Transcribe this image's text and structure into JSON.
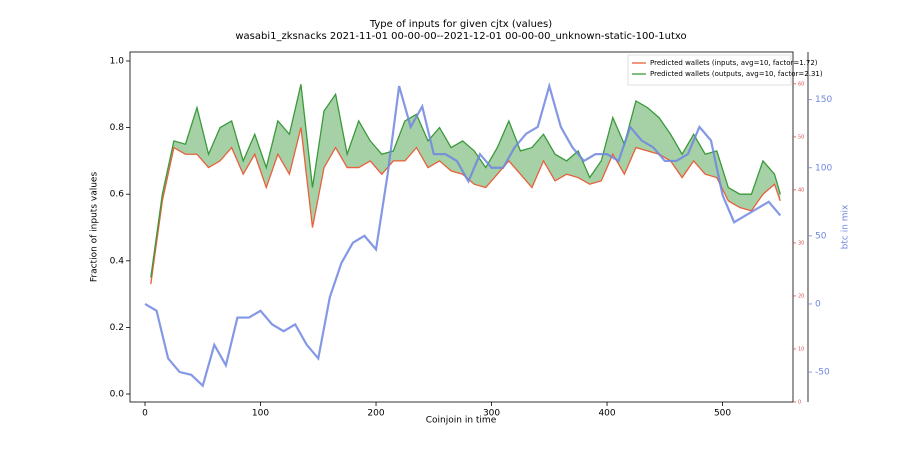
{
  "chart_data": {
    "type": "line",
    "title": "Type of inputs for given cjtx (values)",
    "subtitle": "wasabi1_zksnacks 2021-11-01 00-00-00--2021-12-01 00-00-00_unknown-static-100-1utxo",
    "xlabel": "Coinjoin in time",
    "ylabel": "Fraction of inputs values",
    "y2label": "btc in mix",
    "xlim": [
      -13,
      561
    ],
    "xticks": [
      0,
      100,
      200,
      300,
      400,
      500
    ],
    "ylim": [
      -0.024,
      1.027
    ],
    "yticks": [
      {
        "value": 0,
        "label": "0.0"
      },
      {
        "value": 0.2,
        "label": "0.2"
      },
      {
        "value": 0.4,
        "label": "0.4"
      },
      {
        "value": 0.6,
        "label": "0.6"
      },
      {
        "value": 0.8,
        "label": "0.8"
      },
      {
        "value": 1,
        "label": "1.0"
      }
    ],
    "y3lim": [
      0,
      66
    ],
    "y3ticks": [
      0,
      10,
      20,
      30,
      40,
      50,
      60
    ],
    "y2lim": [
      -72,
      185
    ],
    "y2ticks": [
      -50,
      0,
      50,
      100,
      150
    ],
    "legend": "upper right",
    "fill_between": true,
    "x": [
      5,
      15,
      25,
      35,
      45,
      55,
      65,
      75,
      85,
      95,
      105,
      115,
      125,
      135,
      145,
      155,
      165,
      175,
      185,
      195,
      205,
      215,
      225,
      235,
      245,
      255,
      265,
      275,
      285,
      295,
      305,
      315,
      325,
      335,
      345,
      355,
      365,
      375,
      385,
      395,
      405,
      415,
      425,
      435,
      445,
      455,
      465,
      475,
      485,
      495,
      505,
      515,
      525,
      535,
      545,
      550
    ],
    "series": [
      {
        "name": "Predicted wallets (inputs, avg=10, factor=1.72)",
        "color": "#e8603c",
        "values": [
          0.33,
          0.58,
          0.74,
          0.72,
          0.72,
          0.68,
          0.7,
          0.74,
          0.66,
          0.72,
          0.62,
          0.72,
          0.66,
          0.8,
          0.5,
          0.68,
          0.74,
          0.68,
          0.68,
          0.7,
          0.66,
          0.7,
          0.7,
          0.74,
          0.68,
          0.7,
          0.67,
          0.66,
          0.63,
          0.62,
          0.66,
          0.7,
          0.66,
          0.62,
          0.7,
          0.64,
          0.66,
          0.65,
          0.63,
          0.64,
          0.72,
          0.66,
          0.74,
          0.73,
          0.72,
          0.7,
          0.65,
          0.7,
          0.66,
          0.65,
          0.58,
          0.56,
          0.55,
          0.6,
          0.63,
          0.58
        ]
      },
      {
        "name": "Predicted wallets (outputs, avg=10, factor=2.31)",
        "color": "#3a9a3a",
        "values": [
          0.35,
          0.6,
          0.76,
          0.75,
          0.86,
          0.72,
          0.8,
          0.82,
          0.7,
          0.78,
          0.68,
          0.82,
          0.78,
          0.93,
          0.62,
          0.85,
          0.9,
          0.72,
          0.82,
          0.76,
          0.72,
          0.73,
          0.82,
          0.84,
          0.76,
          0.8,
          0.74,
          0.76,
          0.73,
          0.68,
          0.74,
          0.82,
          0.73,
          0.74,
          0.78,
          0.72,
          0.7,
          0.73,
          0.65,
          0.7,
          0.83,
          0.75,
          0.88,
          0.86,
          0.83,
          0.78,
          0.72,
          0.78,
          0.72,
          0.73,
          0.62,
          0.6,
          0.6,
          0.7,
          0.66,
          0.6
        ]
      },
      {
        "color": "#6f86e0",
        "axis": "y2",
        "x": [
          0,
          10,
          20,
          30,
          40,
          50,
          60,
          70,
          80,
          90,
          100,
          110,
          120,
          130,
          140,
          150,
          160,
          170,
          180,
          190,
          200,
          210,
          220,
          230,
          240,
          250,
          260,
          270,
          280,
          290,
          300,
          310,
          320,
          330,
          340,
          350,
          360,
          370,
          380,
          390,
          400,
          410,
          420,
          430,
          440,
          450,
          460,
          470,
          480,
          490,
          500,
          510,
          520,
          530,
          540,
          550
        ],
        "values": [
          0,
          -5,
          -40,
          -50,
          -52,
          -60,
          -30,
          -45,
          -10,
          -10,
          -5,
          -15,
          -20,
          -15,
          -30,
          -40,
          5,
          30,
          45,
          50,
          40,
          95,
          160,
          130,
          145,
          110,
          110,
          105,
          90,
          110,
          100,
          100,
          115,
          125,
          130,
          160,
          130,
          115,
          105,
          110,
          110,
          105,
          130,
          120,
          115,
          105,
          105,
          110,
          130,
          120,
          80,
          60,
          65,
          70,
          75,
          65
        ]
      }
    ]
  }
}
